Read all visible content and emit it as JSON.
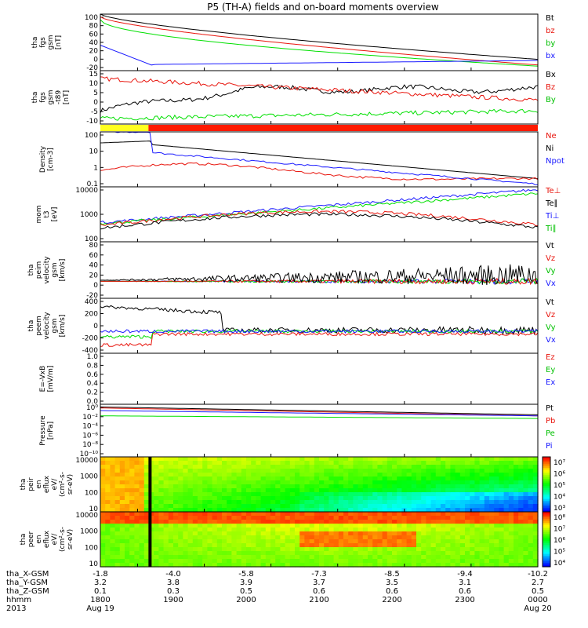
{
  "title": "P5 (TH-A) fields and on-board moments overview",
  "colors": {
    "black": "#000000",
    "red": "#e8150d",
    "green": "#00e000",
    "blue": "#1a1aff",
    "yellow": "#ffff20",
    "darkred": "#aa1010"
  },
  "chart_data": [
    {
      "type": "line",
      "ylabel": [
        "tha",
        "fgs",
        "gsm",
        "[nT]"
      ],
      "yticks": [
        "100",
        "80",
        "60",
        "40",
        "20",
        "0",
        "-20"
      ],
      "legend": [
        {
          "name": "Bt",
          "color": "#000000"
        },
        {
          "name": "bz",
          "color": "#e8150d"
        },
        {
          "name": "by",
          "color": "#00c000"
        },
        {
          "name": "bx",
          "color": "#1a1aff"
        }
      ]
    },
    {
      "type": "line",
      "ylabel": [
        "tha",
        "fgs",
        "gsm",
        "-t89"
      ],
      "yunit": "[nT]",
      "yticks": [
        "15",
        "10",
        "5",
        "0",
        "-5",
        "-10"
      ],
      "legend": [
        {
          "name": "Bx",
          "color": "#000000"
        },
        {
          "name": "Bz",
          "color": "#e8150d"
        },
        {
          "name": "By",
          "color": "#00c000"
        }
      ]
    },
    {
      "type": "bar",
      "note": "mode bar",
      "segments": [
        {
          "color": "#ffff20"
        },
        {
          "color": "#ff1a00"
        }
      ]
    },
    {
      "type": "line",
      "ylabel": [
        "Density",
        "[cm-3]"
      ],
      "log": true,
      "yticks": [
        "100",
        "10",
        "1",
        "0.1"
      ],
      "legend": [
        {
          "name": "Ne",
          "color": "#e8150d"
        },
        {
          "name": "Ni",
          "color": "#000000"
        },
        {
          "name": "Npot",
          "color": "#1a1aff"
        }
      ]
    },
    {
      "type": "line",
      "ylabel": [
        "mom",
        "t3",
        "[eV]"
      ],
      "log": true,
      "yticks": [
        "10000",
        "1000",
        "100"
      ],
      "legend": [
        {
          "name": "Te⊥",
          "color": "#e8150d"
        },
        {
          "name": "Te∥",
          "color": "#000000"
        },
        {
          "name": "Ti⊥",
          "color": "#1a1aff"
        },
        {
          "name": "Ti∥",
          "color": "#00c000"
        }
      ]
    },
    {
      "type": "line",
      "ylabel": [
        "tha",
        "peim",
        "velocity",
        "gsm",
        "[km/s]"
      ],
      "yticks": [
        "80",
        "60",
        "40",
        "20",
        "0",
        "-20"
      ],
      "legend": [
        {
          "name": "Vt",
          "color": "#000000"
        },
        {
          "name": "Vz",
          "color": "#e8150d"
        },
        {
          "name": "Vy",
          "color": "#00c000"
        },
        {
          "name": "Vx",
          "color": "#1a1aff"
        }
      ]
    },
    {
      "type": "line",
      "ylabel": [
        "tha",
        "peem",
        "velocity",
        "gsm",
        "[km/s]"
      ],
      "yticks": [
        "400",
        "200",
        "0",
        "-200",
        "-400"
      ],
      "legend": [
        {
          "name": "Vt",
          "color": "#000000"
        },
        {
          "name": "Vz",
          "color": "#e8150d"
        },
        {
          "name": "Vy",
          "color": "#00c000"
        },
        {
          "name": "Vx",
          "color": "#1a1aff"
        }
      ]
    },
    {
      "type": "line",
      "ylabel": [
        "E=-VxB",
        "[mV/m]"
      ],
      "yticks": [
        "1.0",
        "0.8",
        "0.6",
        "0.4",
        "0.2",
        "0.0"
      ],
      "ylim": [
        0,
        1
      ],
      "legend": [
        {
          "name": "Ez",
          "color": "#e8150d"
        },
        {
          "name": "Ey",
          "color": "#00c000"
        },
        {
          "name": "Ex",
          "color": "#1a1aff"
        }
      ]
    },
    {
      "type": "line",
      "ylabel": [
        "Pressure",
        "[nPa]"
      ],
      "log": true,
      "yticks": [
        "10⁰",
        "10⁻²",
        "10⁻⁴",
        "10⁻⁶",
        "10⁻⁸",
        "10⁻¹⁰"
      ],
      "legend": [
        {
          "name": "Pt",
          "color": "#000000"
        },
        {
          "name": "Pb",
          "color": "#e8150d"
        },
        {
          "name": "Pe",
          "color": "#00c000"
        },
        {
          "name": "Pi",
          "color": "#1a1aff"
        }
      ]
    },
    {
      "type": "heatmap",
      "ylabel": [
        "tha",
        "peir",
        "en",
        "eflux",
        "eV/",
        "(cm²-s-",
        "sr-eV)"
      ],
      "yticks": [
        "10000",
        "1000",
        "100",
        "10"
      ],
      "colorbar": [
        "10⁷",
        "10⁶",
        "10⁵",
        "10⁴",
        "10³"
      ]
    },
    {
      "type": "heatmap",
      "ylabel": [
        "tha",
        "peer",
        "en",
        "eflux",
        "eV/",
        "(cm²-s-",
        "sr-eV)"
      ],
      "yticks": [
        "10000",
        "1000",
        "100",
        "10"
      ],
      "colorbar": [
        "10⁸",
        "10⁷",
        "10⁶",
        "10⁵",
        "10⁴"
      ]
    }
  ],
  "xaxis": {
    "rows": [
      {
        "label": "tha_X-GSM",
        "values": [
          "-1.8",
          "-4.0",
          "-5.8",
          "-7.3",
          "-8.5",
          "-9.4",
          "-10.2"
        ]
      },
      {
        "label": "tha_Y-GSM",
        "values": [
          "3.2",
          "3.8",
          "3.9",
          "3.7",
          "3.5",
          "3.1",
          "2.7"
        ]
      },
      {
        "label": "tha_Z-GSM",
        "values": [
          "0.1",
          "0.3",
          "0.5",
          "0.6",
          "0.6",
          "0.6",
          "0.5"
        ]
      },
      {
        "label": "hhmm",
        "values": [
          "1800",
          "1900",
          "2000",
          "2100",
          "2200",
          "2300",
          "0000"
        ]
      },
      {
        "label": "2013",
        "values": [
          "Aug 19",
          "",
          "",
          "",
          "",
          "",
          "Aug 20"
        ]
      }
    ]
  }
}
